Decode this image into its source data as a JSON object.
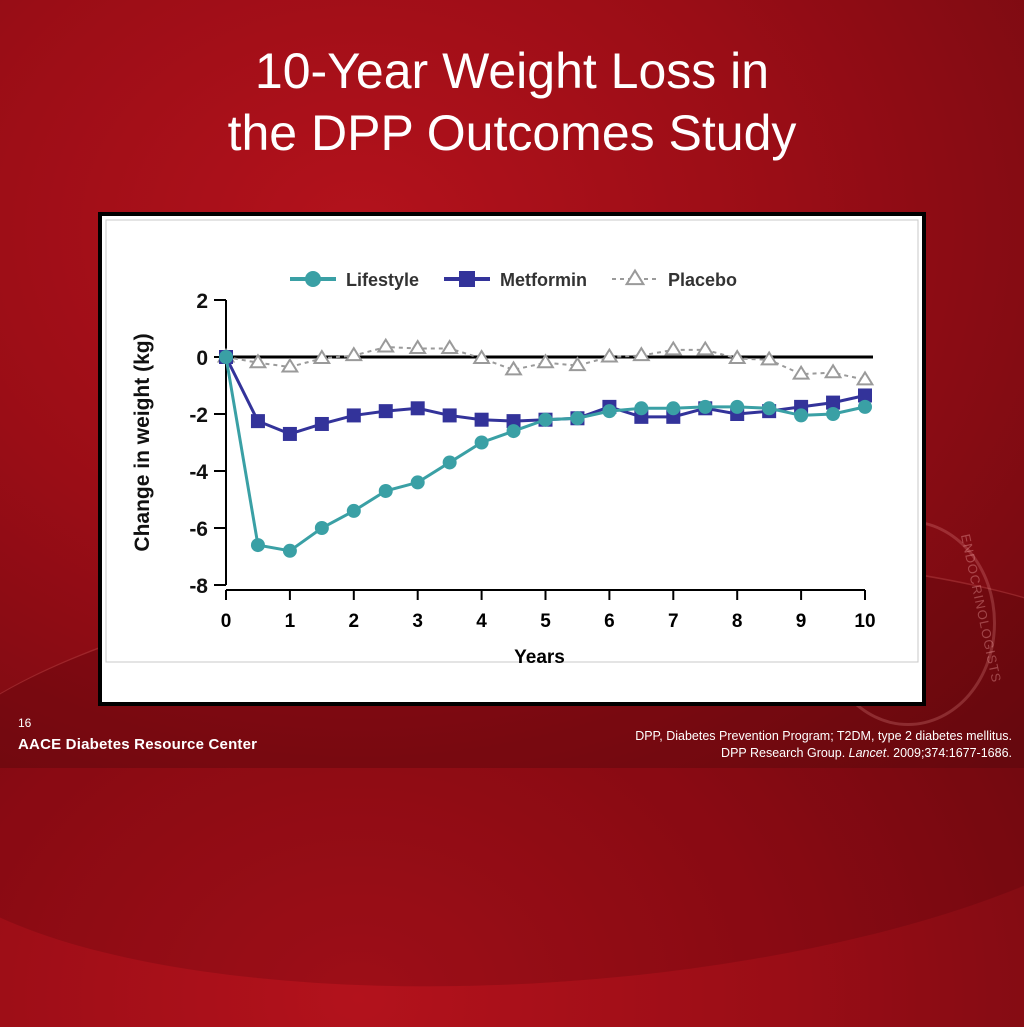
{
  "slide": {
    "title_line1": "10-Year Weight Loss in",
    "title_line2": "the DPP Outcomes Study",
    "page_number": "16",
    "brand": "AACE Diabetes Resource Center",
    "seal_text": "ENDOCRINOLOGISTS",
    "footnote_line1": "DPP, Diabetes Prevention Program; T2DM, type 2 diabetes mellitus.",
    "footnote_line2_prefix": "DPP Research Group. ",
    "footnote_line2_journal": "Lancet",
    "footnote_line2_suffix": ". 2009;374:1677-1686."
  },
  "chart_data": {
    "type": "line",
    "title": "",
    "xlabel": "Years",
    "ylabel": "Change in weight (kg)",
    "xlim": [
      0,
      10
    ],
    "ylim": [
      -8,
      2
    ],
    "x_ticks": [
      "0",
      "1",
      "2",
      "3",
      "4",
      "5",
      "6",
      "7",
      "8",
      "9",
      "10"
    ],
    "y_ticks": [
      "2",
      "0",
      "-2",
      "-4",
      "-6",
      "-8"
    ],
    "legend_position": "top",
    "reference_line_y": 0,
    "series": [
      {
        "name": "Lifestyle",
        "color": "#3aa0a5",
        "marker": "circle",
        "dashed": false,
        "x": [
          0,
          0.5,
          1,
          1.5,
          2,
          2.5,
          3,
          3.5,
          4,
          4.5,
          5,
          5.5,
          6,
          6.5,
          7,
          7.5,
          8,
          8.5,
          9,
          9.5,
          10
        ],
        "values": [
          0,
          -6.6,
          -6.8,
          -6.0,
          -5.4,
          -4.7,
          -4.4,
          -3.7,
          -3.0,
          -2.6,
          -2.2,
          -2.15,
          -1.9,
          -1.8,
          -1.8,
          -1.75,
          -1.75,
          -1.8,
          -2.05,
          -2.0,
          -1.75
        ]
      },
      {
        "name": "Metformin",
        "color": "#33339a",
        "marker": "square",
        "dashed": false,
        "x": [
          0,
          0.5,
          1,
          1.5,
          2,
          2.5,
          3,
          3.5,
          4,
          4.5,
          5,
          5.5,
          6,
          6.5,
          7,
          7.5,
          8,
          8.5,
          9,
          9.5,
          10
        ],
        "values": [
          0,
          -2.25,
          -2.7,
          -2.35,
          -2.05,
          -1.9,
          -1.8,
          -2.05,
          -2.2,
          -2.25,
          -2.2,
          -2.15,
          -1.75,
          -2.1,
          -2.1,
          -1.8,
          -2.0,
          -1.9,
          -1.75,
          -1.6,
          -1.35
        ]
      },
      {
        "name": "Placebo",
        "color": "#9a9a9a",
        "marker": "triangle",
        "dashed": true,
        "x": [
          0,
          0.5,
          1,
          1.5,
          2,
          2.5,
          3,
          3.5,
          4,
          4.5,
          5,
          5.5,
          6,
          6.5,
          7,
          7.5,
          8,
          8.5,
          9,
          9.5,
          10
        ],
        "values": [
          0,
          -0.2,
          -0.35,
          -0.05,
          0.05,
          0.35,
          0.3,
          0.3,
          -0.05,
          -0.45,
          -0.2,
          -0.3,
          0.0,
          0.05,
          0.25,
          0.25,
          -0.05,
          -0.1,
          -0.6,
          -0.55,
          -0.8
        ]
      }
    ]
  }
}
